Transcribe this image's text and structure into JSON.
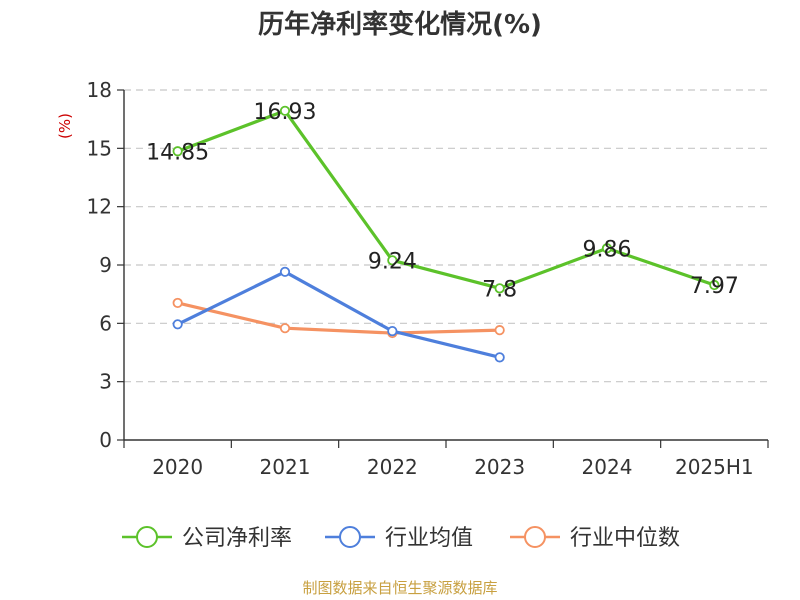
{
  "chart_data": {
    "type": "line",
    "title": "历年净利率变化情况(%)",
    "ylabel": "(%)",
    "categories": [
      "2020",
      "2021",
      "2022",
      "2023",
      "2024",
      "2025H1"
    ],
    "ylim": [
      0,
      18
    ],
    "yticks": [
      0,
      3,
      6,
      9,
      12,
      15,
      18
    ],
    "grid": true,
    "legend_position": "bottom",
    "series": [
      {
        "name": "公司净利率",
        "color": "#5cc22a",
        "values": [
          14.85,
          16.93,
          9.24,
          7.8,
          9.86,
          7.97
        ],
        "labels": [
          "14.85",
          "16.93",
          "9.24",
          "7.8",
          "9.86",
          "7.97"
        ]
      },
      {
        "name": "行业均值",
        "color": "#4e7fdc",
        "values": [
          5.95,
          8.65,
          5.6,
          4.25,
          null,
          null
        ]
      },
      {
        "name": "行业中位数",
        "color": "#f59262",
        "values": [
          7.05,
          5.75,
          5.5,
          5.65,
          null,
          null
        ]
      }
    ],
    "unit_color": "#cc0000",
    "source": "制图数据来自恒生聚源数据库",
    "source_color": "#c8a040"
  }
}
